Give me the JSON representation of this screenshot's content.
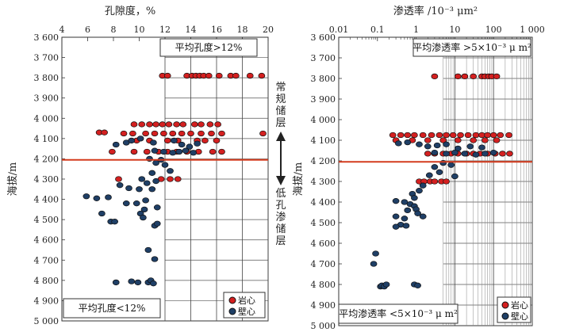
{
  "chart_data": [
    {
      "type": "scatter",
      "xlabel": "孔隙度，%",
      "ylabel": "海拔/m",
      "xlim": [
        4,
        20
      ],
      "ylim": [
        3600,
        5000
      ],
      "x_ticks": [
        4,
        6,
        8,
        10,
        12,
        14,
        16,
        18,
        20
      ],
      "y_ticks": [
        3600,
        3700,
        3800,
        3900,
        4000,
        4100,
        4200,
        4300,
        4400,
        4500,
        4600,
        4700,
        4800,
        4900,
        5000
      ],
      "y_tick_labels": [
        "3 600",
        "3 700",
        "3 800",
        "3 900",
        "4 000",
        "4 100",
        "4 200",
        "4 300",
        "4 400",
        "4 500",
        "4 600",
        "4 700",
        "4 800",
        "4 900",
        "5 000"
      ],
      "grid": true,
      "grid_region_x": [
        12,
        20
      ],
      "boundary_y": 4205,
      "legend_position": "bottom-right",
      "annotations": {
        "top": "平均孔度>12%",
        "bottom": "平均孔度<12%"
      },
      "series": [
        {
          "name": "岩心",
          "color": "#d42020",
          "points": [
            [
              11.8,
              3790
            ],
            [
              12.2,
              3790
            ],
            [
              13.7,
              3790
            ],
            [
              14.1,
              3790
            ],
            [
              14.4,
              3790
            ],
            [
              14.7,
              3790
            ],
            [
              15.0,
              3790
            ],
            [
              15.4,
              3790
            ],
            [
              16.2,
              3790
            ],
            [
              17.1,
              3790
            ],
            [
              17.5,
              3790
            ],
            [
              18.6,
              3790
            ],
            [
              19.5,
              3790
            ],
            [
              9.6,
              4030
            ],
            [
              10.2,
              4030
            ],
            [
              10.8,
              4030
            ],
            [
              11.3,
              4030
            ],
            [
              11.8,
              4030
            ],
            [
              12.3,
              4030
            ],
            [
              12.9,
              4030
            ],
            [
              13.4,
              4030
            ],
            [
              14.3,
              4030
            ],
            [
              14.8,
              4030
            ],
            [
              15.5,
              4030
            ],
            [
              16.1,
              4030
            ],
            [
              6.9,
              4070
            ],
            [
              7.3,
              4070
            ],
            [
              8.8,
              4075
            ],
            [
              9.5,
              4075
            ],
            [
              10.5,
              4075
            ],
            [
              11.2,
              4075
            ],
            [
              11.9,
              4075
            ],
            [
              12.6,
              4075
            ],
            [
              13.3,
              4075
            ],
            [
              14.0,
              4075
            ],
            [
              14.8,
              4075
            ],
            [
              15.6,
              4075
            ],
            [
              16.4,
              4075
            ],
            [
              19.6,
              4075
            ],
            [
              9.8,
              4110
            ],
            [
              10.8,
              4110
            ],
            [
              12.2,
              4110
            ],
            [
              13.0,
              4110
            ],
            [
              14.5,
              4110
            ],
            [
              15.1,
              4110
            ],
            [
              16.0,
              4110
            ],
            [
              7.9,
              4165
            ],
            [
              9.6,
              4165
            ],
            [
              10.6,
              4165
            ],
            [
              11.5,
              4165
            ],
            [
              12.2,
              4165
            ],
            [
              12.9,
              4165
            ],
            [
              13.7,
              4165
            ],
            [
              14.6,
              4165
            ],
            [
              15.7,
              4165
            ],
            [
              16.4,
              4165
            ],
            [
              8.4,
              4300
            ],
            [
              11.7,
              4300
            ],
            [
              12.4,
              4300
            ],
            [
              13.0,
              4300
            ]
          ]
        },
        {
          "name": "壁心",
          "color": "#1f3f66",
          "points": [
            [
              8.2,
              4130
            ],
            [
              9.0,
              4120
            ],
            [
              9.4,
              4110
            ],
            [
              10.1,
              4100
            ],
            [
              11.1,
              4120
            ],
            [
              12.7,
              4110
            ],
            [
              13.3,
              4130
            ],
            [
              13.9,
              4140
            ],
            [
              14.5,
              4125
            ],
            [
              11.2,
              4160
            ],
            [
              11.9,
              4165
            ],
            [
              12.6,
              4170
            ],
            [
              13.1,
              4165
            ],
            [
              13.6,
              4160
            ],
            [
              14.2,
              4170
            ],
            [
              10.8,
              4200
            ],
            [
              11.3,
              4220
            ],
            [
              11.7,
              4205
            ],
            [
              12.0,
              4230
            ],
            [
              12.4,
              4260
            ],
            [
              11.0,
              4270
            ],
            [
              10.2,
              4300
            ],
            [
              10.6,
              4320
            ],
            [
              11.3,
              4310
            ],
            [
              8.5,
              4330
            ],
            [
              9.2,
              4345
            ],
            [
              10.0,
              4350
            ],
            [
              11.0,
              4350
            ],
            [
              5.9,
              4385
            ],
            [
              6.7,
              4395
            ],
            [
              7.6,
              4390
            ],
            [
              9.0,
              4420
            ],
            [
              9.8,
              4420
            ],
            [
              10.5,
              4405
            ],
            [
              11.4,
              4440
            ],
            [
              10.4,
              4450
            ],
            [
              10.1,
              4470
            ],
            [
              7.1,
              4470
            ],
            [
              7.8,
              4510
            ],
            [
              8.1,
              4510
            ],
            [
              10.3,
              4490
            ],
            [
              11.2,
              4530
            ],
            [
              11.4,
              4520
            ],
            [
              10.7,
              4650
            ],
            [
              11.2,
              4695
            ],
            [
              8.2,
              4810
            ],
            [
              9.4,
              4805
            ],
            [
              9.9,
              4810
            ],
            [
              10.7,
              4810
            ],
            [
              10.9,
              4800
            ],
            [
              11.1,
              4815
            ]
          ]
        }
      ]
    },
    {
      "type": "scatter",
      "xlabel": "渗透率 /10⁻³ μm²",
      "ylabel": "海拔/m",
      "xscale": "log",
      "xlim": [
        0.01,
        1000
      ],
      "ylim": [
        3600,
        5000
      ],
      "x_ticks": [
        0.01,
        0.1,
        1,
        10,
        100,
        1000
      ],
      "x_tick_labels": [
        "0.01",
        "0.1",
        "1",
        "10",
        "100",
        "1 000"
      ],
      "y_ticks": [
        3600,
        3700,
        3800,
        3900,
        4000,
        4100,
        4200,
        4300,
        4400,
        4500,
        4600,
        4700,
        4800,
        4900,
        5000
      ],
      "y_tick_labels": [
        "3 600",
        "3 700",
        "3 800",
        "3 900",
        "4 000",
        "4 100",
        "4 200",
        "4 300",
        "4 400",
        "4 500",
        "4 600",
        "4 700",
        "4 800",
        "4 900",
        "5 000"
      ],
      "grid": true,
      "grid_region_x": [
        5,
        1000
      ],
      "boundary_y": 4205,
      "legend_position": "bottom-right",
      "annotations": {
        "top": "平均渗透率 >5×10⁻³ μ m²",
        "bottom": "平均渗透率 <5×10⁻³ μ m²"
      },
      "series": [
        {
          "name": "岩心",
          "color": "#d42020",
          "points": [
            [
              3,
              3790
            ],
            [
              12,
              3790
            ],
            [
              18,
              3790
            ],
            [
              30,
              3790
            ],
            [
              50,
              3790
            ],
            [
              60,
              3790
            ],
            [
              75,
              3790
            ],
            [
              90,
              3790
            ],
            [
              120,
              3790
            ],
            [
              0.25,
              4075
            ],
            [
              0.4,
              4075
            ],
            [
              0.6,
              4075
            ],
            [
              0.9,
              4075
            ],
            [
              1.5,
              4075
            ],
            [
              2.5,
              4075
            ],
            [
              4,
              4075
            ],
            [
              6,
              4075
            ],
            [
              9,
              4075
            ],
            [
              14,
              4075
            ],
            [
              22,
              4075
            ],
            [
              35,
              4075
            ],
            [
              50,
              4075
            ],
            [
              70,
              4075
            ],
            [
              100,
              4075
            ],
            [
              150,
              4075
            ],
            [
              250,
              4075
            ],
            [
              0.3,
              4100
            ],
            [
              0.8,
              4100
            ],
            [
              2,
              4100
            ],
            [
              5,
              4100
            ],
            [
              12,
              4100
            ],
            [
              30,
              4100
            ],
            [
              60,
              4100
            ],
            [
              120,
              4100
            ],
            [
              2,
              4165
            ],
            [
              3,
              4165
            ],
            [
              5,
              4165
            ],
            [
              8,
              4165
            ],
            [
              12,
              4165
            ],
            [
              20,
              4165
            ],
            [
              30,
              4165
            ],
            [
              45,
              4165
            ],
            [
              70,
              4165
            ],
            [
              110,
              4165
            ],
            [
              170,
              4165
            ],
            [
              260,
              4165
            ],
            [
              1.2,
              4300
            ],
            [
              1.6,
              4300
            ],
            [
              2.3,
              4300
            ],
            [
              3,
              4300
            ],
            [
              4.5,
              4300
            ],
            [
              6,
              4300
            ]
          ]
        },
        {
          "name": "壁心",
          "color": "#1f3f66",
          "points": [
            [
              0.35,
              4115
            ],
            [
              0.6,
              4110
            ],
            [
              1.2,
              4120
            ],
            [
              2,
              4130
            ],
            [
              3.5,
              4125
            ],
            [
              6,
              4120
            ],
            [
              12,
              4140
            ],
            [
              25,
              4130
            ],
            [
              50,
              4135
            ],
            [
              3,
              4160
            ],
            [
              6,
              4165
            ],
            [
              10,
              4160
            ],
            [
              18,
              4165
            ],
            [
              35,
              4170
            ],
            [
              60,
              4165
            ],
            [
              100,
              4160
            ],
            [
              5,
              4210
            ],
            [
              8,
              4220
            ],
            [
              3,
              4230
            ],
            [
              4,
              4255
            ],
            [
              2.2,
              4270
            ],
            [
              10,
              4275
            ],
            [
              1.5,
              4320
            ],
            [
              1.2,
              4345
            ],
            [
              0.8,
              4360
            ],
            [
              0.9,
              4380
            ],
            [
              0.3,
              4395
            ],
            [
              0.5,
              4400
            ],
            [
              0.7,
              4410
            ],
            [
              0.9,
              4420
            ],
            [
              0.6,
              4440
            ],
            [
              1.0,
              4435
            ],
            [
              0.3,
              4470
            ],
            [
              0.5,
              4480
            ],
            [
              0.4,
              4510
            ],
            [
              0.55,
              4515
            ],
            [
              0.3,
              4520
            ],
            [
              1.1,
              4455
            ],
            [
              1.5,
              4470
            ],
            [
              0.08,
              4700
            ],
            [
              0.09,
              4650
            ],
            [
              0.12,
              4810
            ],
            [
              0.13,
              4805
            ],
            [
              0.15,
              4810
            ],
            [
              0.17,
              4800
            ],
            [
              0.9,
              4800
            ],
            [
              1.1,
              4805
            ]
          ]
        }
      ]
    }
  ],
  "middle_labels": {
    "upper": "常规储层",
    "lower": "低孔渗储层"
  }
}
